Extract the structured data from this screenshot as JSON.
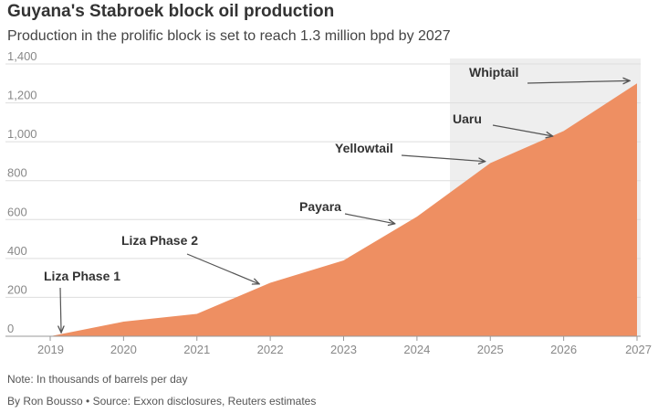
{
  "header": {
    "title": "Guyana's Stabroek block oil production",
    "subtitle": "Production in the prolific block is set to reach 1.3 million bpd by 2027"
  },
  "footer": {
    "note": "Note: In thousands of barrels per day",
    "source": "By Ron Bousso • Source: Exxon disclosures, Reuters estimates"
  },
  "colors": {
    "area": "#ee8f62",
    "forecast_shade": "#eeeeee",
    "grid": "#dddddd",
    "axis": "#999999",
    "arrow": "#555555"
  },
  "chart_data": {
    "type": "area",
    "title": "Guyana's Stabroek block oil production",
    "subtitle": "Production in the prolific block is set to reach 1.3 million bpd by 2027",
    "xlabel": "",
    "ylabel": "",
    "x_ticks": [
      "2019",
      "2020",
      "2021",
      "2022",
      "2023",
      "2024",
      "2025",
      "2026",
      "2027"
    ],
    "y_ticks": [
      "0",
      "200",
      "400",
      "600",
      "800",
      "1,000",
      "1,200",
      "1,400"
    ],
    "xlim": [
      2019,
      2027
    ],
    "ylim": [
      0,
      1400
    ],
    "grid": true,
    "x": [
      2019,
      2020,
      2021,
      2022,
      2023,
      2024,
      2025,
      2026,
      2027
    ],
    "values": [
      0,
      75,
      115,
      275,
      390,
      615,
      890,
      1055,
      1300
    ],
    "forecast_shaded_from": 2024.45,
    "annotations": [
      {
        "label": "Liza Phase 1",
        "x": 2019.15,
        "y": 0
      },
      {
        "label": "Liza Phase 2",
        "x": 2021.85,
        "y": 250
      },
      {
        "label": "Payara",
        "x": 2023.7,
        "y": 560
      },
      {
        "label": "Yellowtail",
        "x": 2024.93,
        "y": 880
      },
      {
        "label": "Uaru",
        "x": 2025.85,
        "y": 1010
      },
      {
        "label": "Whiptail",
        "x": 2026.9,
        "y": 1295
      }
    ]
  }
}
